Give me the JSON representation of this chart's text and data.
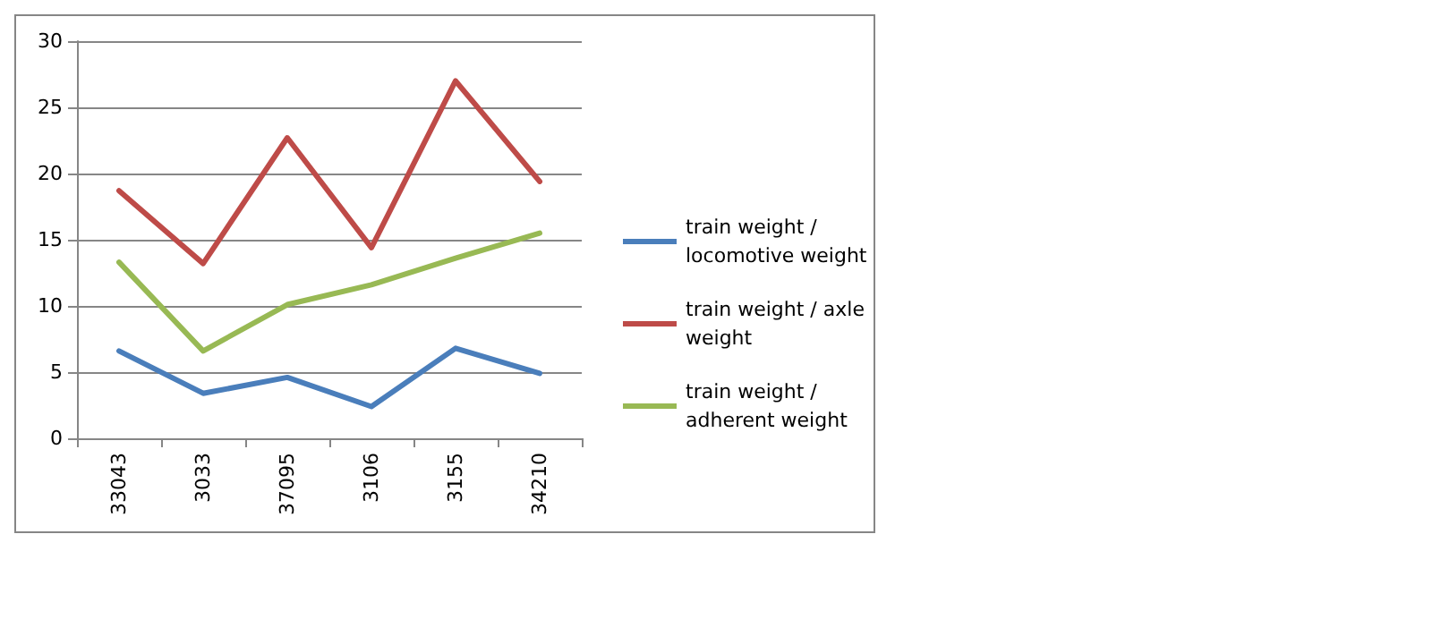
{
  "chart_data": {
    "type": "line",
    "categories": [
      "33043",
      "3033",
      "37095",
      "3106",
      "3155",
      "34210"
    ],
    "series": [
      {
        "name": "train weight / locomotive weight",
        "color": "#4a7ebb",
        "values": [
          6.6,
          3.4,
          4.6,
          2.4,
          6.8,
          4.9
        ]
      },
      {
        "name": "train weight / axle weight",
        "color": "#be4b48",
        "values": [
          18.7,
          13.2,
          22.7,
          14.4,
          27.0,
          19.4
        ]
      },
      {
        "name": "train weight / adherent weight",
        "color": "#98b954",
        "values": [
          13.3,
          6.6,
          10.1,
          11.6,
          13.6,
          15.5
        ]
      }
    ],
    "ylim": [
      0,
      30
    ],
    "yticks": [
      0,
      5,
      10,
      15,
      20,
      25,
      30
    ],
    "grid": "y",
    "legend": "right",
    "marker": "none",
    "line_style": "solid"
  }
}
